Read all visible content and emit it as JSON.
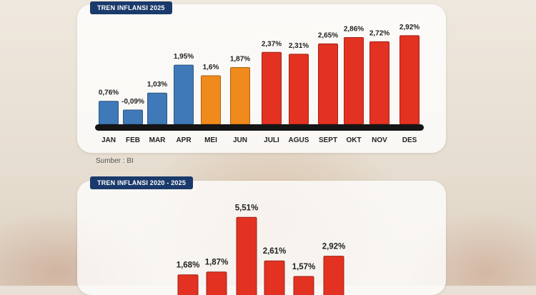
{
  "chart_data": [
    {
      "type": "bar",
      "title": "TREN INFLANSI 2025",
      "categories": [
        "JAN",
        "FEB",
        "MAR",
        "APR",
        "MEI",
        "JUN",
        "JULI",
        "AGUS",
        "SEPT",
        "OKT",
        "NOV",
        "DES"
      ],
      "values": [
        0.76,
        -0.09,
        1.03,
        1.95,
        1.6,
        1.87,
        2.37,
        2.31,
        2.65,
        2.86,
        2.72,
        2.92
      ],
      "value_labels": [
        "0,76%",
        "-0,09%",
        "1,03%",
        "1,95%",
        "1,6%",
        "1,87%",
        "2,37%",
        "2,31%",
        "2,65%",
        "2,86%",
        "2,72%",
        "2,92%"
      ],
      "bar_groups": [
        "blue",
        "blue",
        "blue",
        "blue",
        "orange",
        "orange",
        "red",
        "red",
        "red",
        "red",
        "red",
        "red"
      ],
      "colors": {
        "blue": "#3f79b8",
        "orange": "#f08a1c",
        "red": "#e33221"
      },
      "source": "Sumber : BI",
      "xlabel": "",
      "ylabel": "",
      "grid": false
    },
    {
      "type": "bar",
      "title": "TREN INFLANSI 2020 - 2025",
      "values": [
        1.68,
        1.87,
        5.51,
        2.61,
        1.57,
        2.92
      ],
      "value_labels": [
        "1,68%",
        "1,87%",
        "5,51%",
        "2,61%",
        "1,57%",
        "2,92%"
      ],
      "colors": {
        "bar": "#e33221"
      },
      "xlabel": "",
      "ylabel": "",
      "grid": false
    }
  ]
}
